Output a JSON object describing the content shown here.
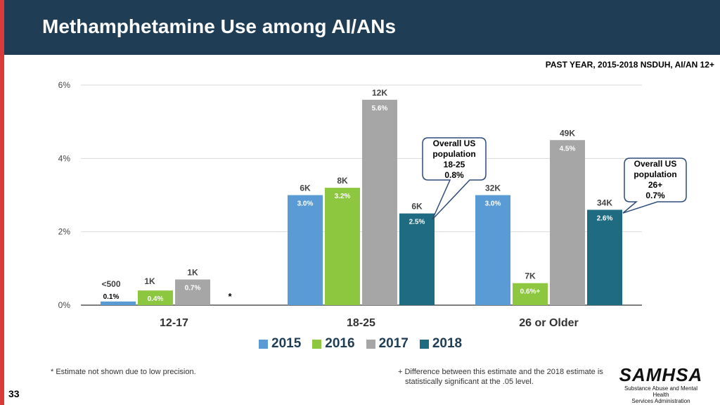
{
  "title": "Methamphetamine Use among AI/ANs",
  "subtitle": "PAST YEAR, 2015-2018 NSDUH, AI/AN 12+",
  "colors": {
    "header_bg": "#1f3d54",
    "accent_bar": "#d93a3a",
    "2015": "#5b9bd5",
    "2016": "#8dc63f",
    "2017": "#a6a6a6",
    "2018": "#1e6b82"
  },
  "chart_data": {
    "type": "bar",
    "title": "Methamphetamine Use among AI/ANs",
    "xlabel": "",
    "ylabel": "",
    "ylim": [
      0,
      6
    ],
    "y_ticks": [
      "0%",
      "2%",
      "4%",
      "6%"
    ],
    "categories": [
      "12-17",
      "18-25",
      "26 or Older"
    ],
    "series": [
      {
        "name": "2015",
        "values": [
          0.1,
          3.0,
          3.0
        ],
        "labels": [
          "0.1%",
          "3.0%",
          "3.0%"
        ],
        "counts": [
          "<500",
          "6K",
          "32K"
        ]
      },
      {
        "name": "2016",
        "values": [
          0.4,
          3.2,
          0.6
        ],
        "labels": [
          "0.4%",
          "3.2%",
          "0.6%+"
        ],
        "counts": [
          "1K",
          "8K",
          "7K"
        ]
      },
      {
        "name": "2017",
        "values": [
          0.7,
          5.6,
          4.5
        ],
        "labels": [
          "0.7%",
          "5.6%",
          "4.5%"
        ],
        "counts": [
          "1K",
          "12K",
          "49K"
        ]
      },
      {
        "name": "2018",
        "values": [
          null,
          2.5,
          2.6
        ],
        "labels": [
          "*",
          "2.5%",
          "2.6%"
        ],
        "counts": [
          "",
          "6K",
          "34K"
        ]
      }
    ],
    "callouts": [
      {
        "lines": [
          "Overall US",
          "population",
          "18-25",
          "0.8%"
        ]
      },
      {
        "lines": [
          "Overall US",
          "population",
          "26+",
          "0.7%"
        ]
      }
    ]
  },
  "footnotes": {
    "low_precision": "* Estimate not shown due to low precision.",
    "difference_line1": "+ Difference between this estimate and the 2018 estimate is",
    "difference_line2": "statistically significant at the .05 level."
  },
  "page_number": "33",
  "logo": {
    "name": "SAMHSA",
    "subline1": "Substance Abuse and Mental Health",
    "subline2": "Services Administration"
  }
}
